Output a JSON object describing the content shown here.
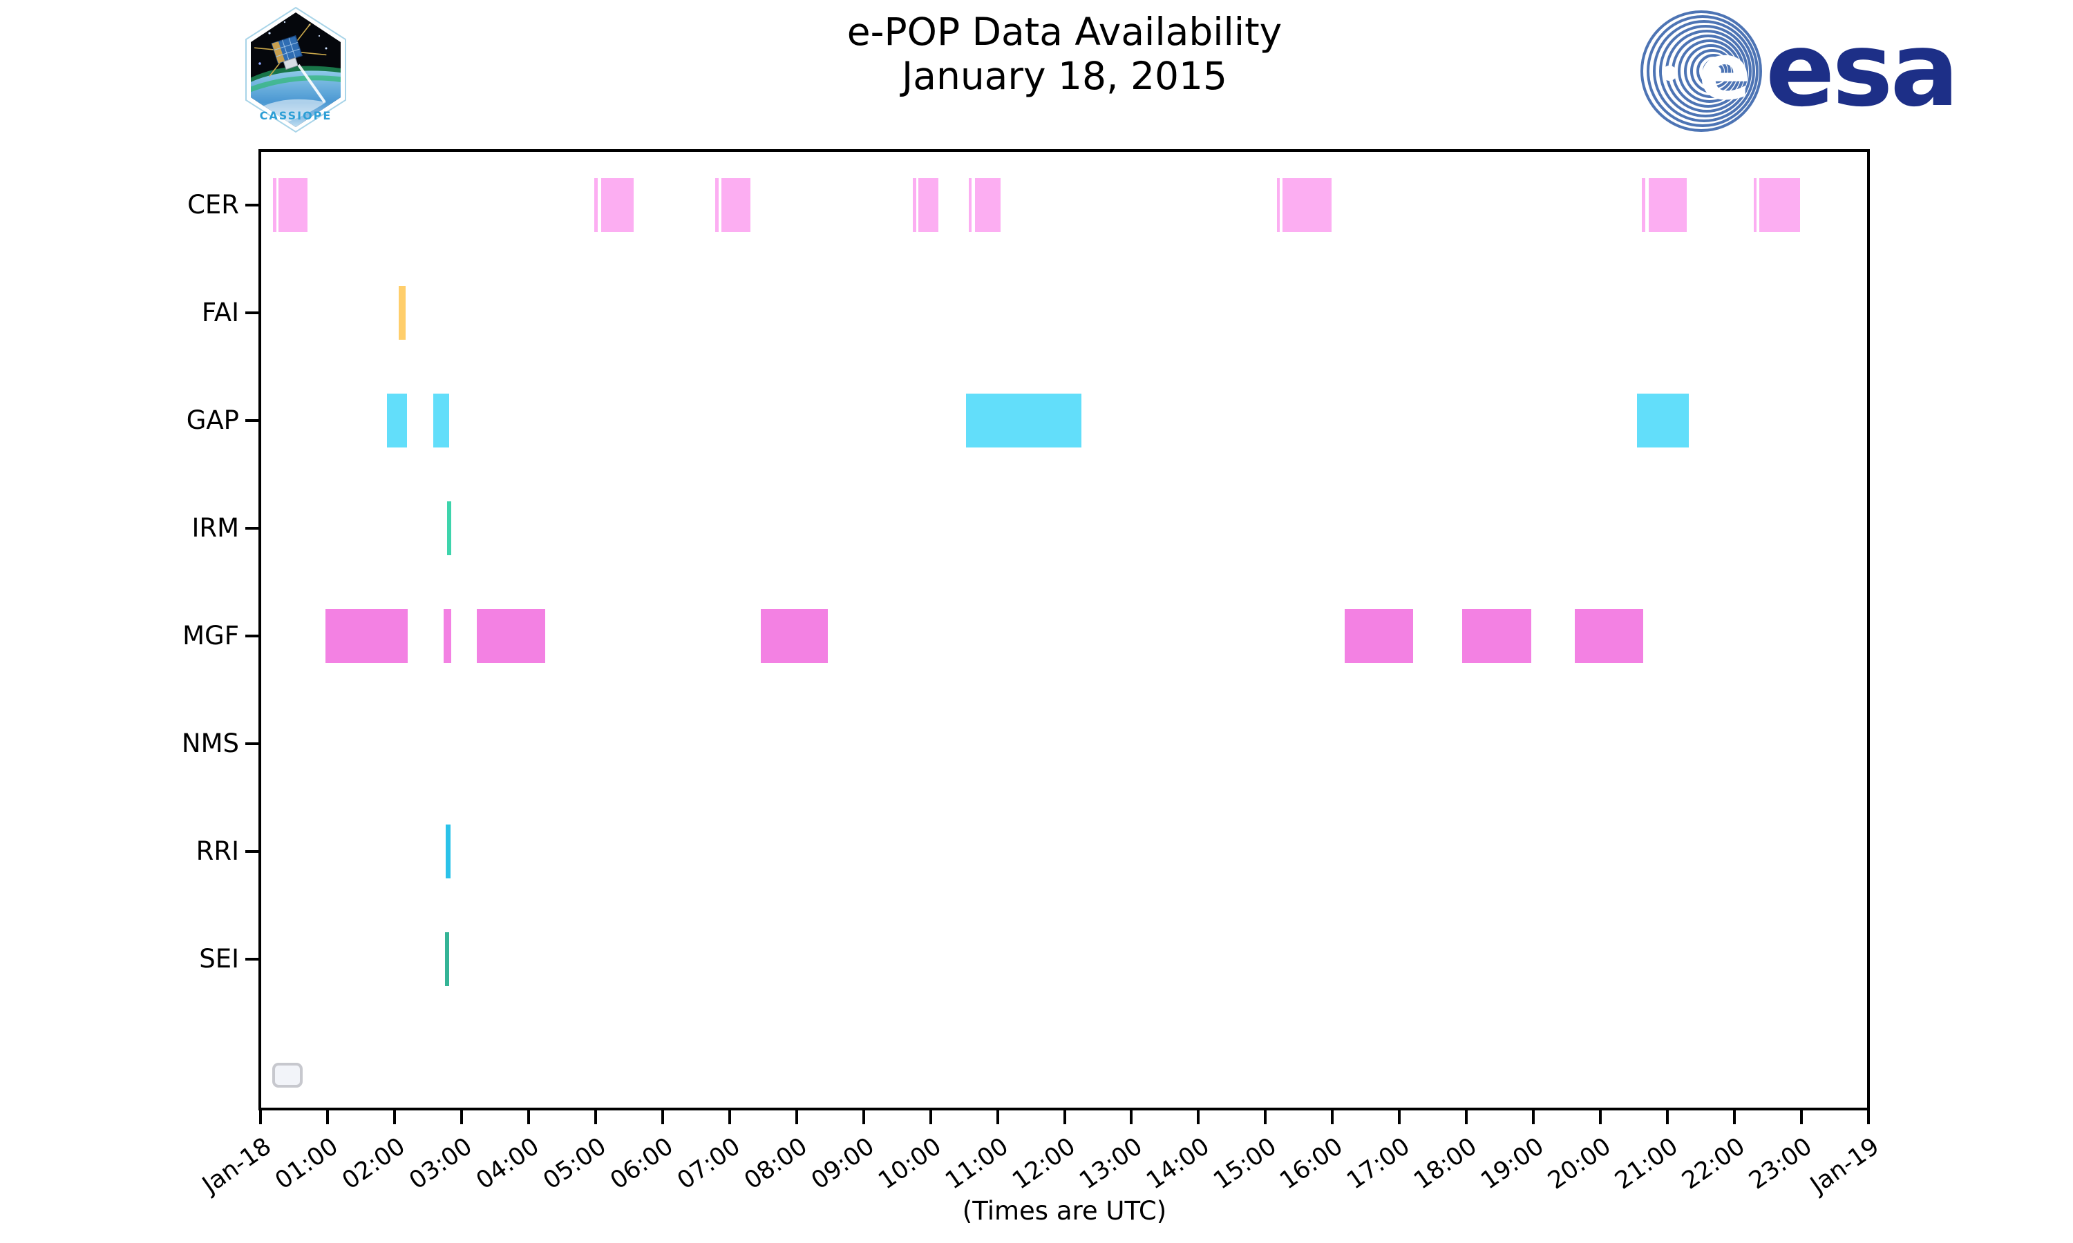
{
  "header": {
    "cassiope_logo_text": "CASSIOPE",
    "esa_logo_text": "esa",
    "esa_blue": "#1d2f87",
    "esa_swirl_blue": "#4d74b4",
    "cassiope_text_blue": "#2d9fd6"
  },
  "chart_data": {
    "type": "gantt-timeline",
    "title": "e-POP Data Availability",
    "subtitle": "January 18, 2015",
    "xlabel": "(Times are UTC)",
    "x_range_hours": [
      0,
      24
    ],
    "grid": false,
    "legend_box_present": true,
    "axis_color": "#000000",
    "x_ticks": [
      {
        "label": "Jan-18",
        "hour": 0
      },
      {
        "label": "01:00",
        "hour": 1
      },
      {
        "label": "02:00",
        "hour": 2
      },
      {
        "label": "03:00",
        "hour": 3
      },
      {
        "label": "04:00",
        "hour": 4
      },
      {
        "label": "05:00",
        "hour": 5
      },
      {
        "label": "06:00",
        "hour": 6
      },
      {
        "label": "07:00",
        "hour": 7
      },
      {
        "label": "08:00",
        "hour": 8
      },
      {
        "label": "09:00",
        "hour": 9
      },
      {
        "label": "10:00",
        "hour": 10
      },
      {
        "label": "11:00",
        "hour": 11
      },
      {
        "label": "12:00",
        "hour": 12
      },
      {
        "label": "13:00",
        "hour": 13
      },
      {
        "label": "14:00",
        "hour": 14
      },
      {
        "label": "15:00",
        "hour": 15
      },
      {
        "label": "16:00",
        "hour": 16
      },
      {
        "label": "17:00",
        "hour": 17
      },
      {
        "label": "18:00",
        "hour": 18
      },
      {
        "label": "19:00",
        "hour": 19
      },
      {
        "label": "20:00",
        "hour": 20
      },
      {
        "label": "21:00",
        "hour": 21
      },
      {
        "label": "22:00",
        "hour": 22
      },
      {
        "label": "23:00",
        "hour": 23
      },
      {
        "label": "Jan-19",
        "hour": 24
      }
    ],
    "rows": [
      {
        "label": "CER",
        "color": "#fcaef2",
        "segments": [
          [
            "00:11",
            "00:14"
          ],
          [
            "00:16",
            "00:42"
          ],
          [
            "04:59",
            "05:02"
          ],
          [
            "05:05",
            "05:34"
          ],
          [
            "06:47",
            "06:50"
          ],
          [
            "06:53",
            "07:19"
          ],
          [
            "09:44",
            "09:47"
          ],
          [
            "09:49",
            "10:07"
          ],
          [
            "10:34",
            "10:37"
          ],
          [
            "10:40",
            "11:03"
          ],
          [
            "15:10",
            "15:13"
          ],
          [
            "15:15",
            "15:59"
          ],
          [
            "20:37",
            "20:40"
          ],
          [
            "20:43",
            "21:17"
          ],
          [
            "22:17",
            "22:20"
          ],
          [
            "22:22",
            "22:59"
          ]
        ]
      },
      {
        "label": "FAI",
        "color": "#ffce6b",
        "segments": [
          [
            "02:04",
            "02:10"
          ]
        ]
      },
      {
        "label": "GAP",
        "color": "#62defa",
        "segments": [
          [
            "01:53",
            "02:11"
          ],
          [
            "02:35",
            "02:49"
          ],
          [
            "10:32",
            "12:15"
          ],
          [
            "20:33",
            "21:19"
          ]
        ]
      },
      {
        "label": "IRM",
        "color": "#3ed4ac",
        "segments": [
          [
            "02:47",
            "02:51"
          ]
        ]
      },
      {
        "label": "MGF",
        "color": "#f381e3",
        "segments": [
          [
            "00:58",
            "02:12"
          ],
          [
            "02:44",
            "02:51"
          ],
          [
            "03:14",
            "04:15"
          ],
          [
            "07:28",
            "08:28"
          ],
          [
            "16:11",
            "17:12"
          ],
          [
            "17:56",
            "18:58"
          ],
          [
            "19:37",
            "20:38"
          ]
        ]
      },
      {
        "label": "NMS",
        "color": "#bbbbbb",
        "segments": []
      },
      {
        "label": "RRI",
        "color": "#2bc2e9",
        "segments": [
          [
            "02:46",
            "02:50"
          ]
        ]
      },
      {
        "label": "SEI",
        "color": "#34b496",
        "segments": [
          [
            "02:45",
            "02:49"
          ]
        ]
      }
    ]
  }
}
